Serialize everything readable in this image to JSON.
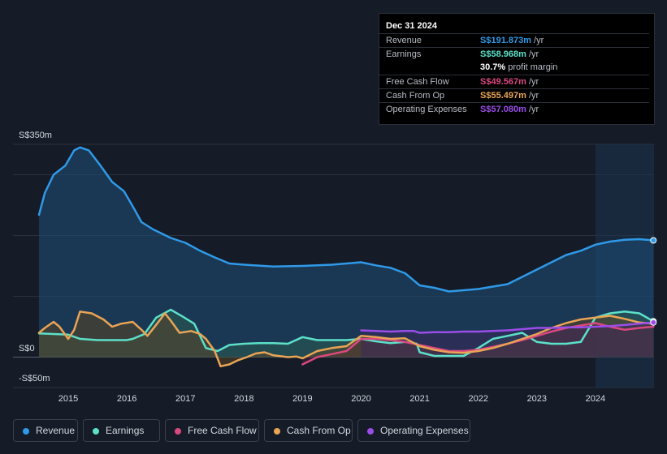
{
  "tooltip": {
    "date": "Dec 31 2024",
    "rows": [
      {
        "label": "Revenue",
        "value": "S$191.873m",
        "unit": " /yr",
        "color": "#2f9ae8"
      },
      {
        "label": "Earnings",
        "value": "S$58.968m",
        "unit": " /yr",
        "color": "#5ce0c8"
      },
      {
        "label": "",
        "value": "30.7%",
        "unit": " profit margin",
        "color": "#ffffff"
      },
      {
        "label": "Free Cash Flow",
        "value": "S$49.567m",
        "unit": " /yr",
        "color": "#d9487f"
      },
      {
        "label": "Cash From Op",
        "value": "S$55.497m",
        "unit": " /yr",
        "color": "#e9a455"
      },
      {
        "label": "Operating Expenses",
        "value": "S$57.080m",
        "unit": " /yr",
        "color": "#9b4de8"
      }
    ]
  },
  "legend": [
    {
      "label": "Revenue",
      "color": "#2f9ae8"
    },
    {
      "label": "Earnings",
      "color": "#5ce0c8"
    },
    {
      "label": "Free Cash Flow",
      "color": "#d9487f"
    },
    {
      "label": "Cash From Op",
      "color": "#e9a455"
    },
    {
      "label": "Operating Expenses",
      "color": "#9b4de8"
    }
  ],
  "chart_data": {
    "type": "area",
    "title": "",
    "xlabel": "",
    "ylabel": "",
    "ylim": [
      -50,
      350
    ],
    "xlim": [
      2014.5,
      2025.0
    ],
    "y_tick_labels": [
      {
        "value": 350,
        "label": "S$350m"
      },
      {
        "value": 0,
        "label": "S$0"
      },
      {
        "value": -50,
        "label": "-S$50m"
      }
    ],
    "x_tick_labels": [
      "2015",
      "2016",
      "2017",
      "2018",
      "2019",
      "2020",
      "2021",
      "2022",
      "2023",
      "2024"
    ],
    "x_ticks": [
      2015,
      2016,
      2017,
      2018,
      2019,
      2020,
      2021,
      2022,
      2023,
      2024
    ],
    "gridlines_at": [
      350,
      300,
      200,
      100,
      0,
      -50
    ],
    "forecast_shade_from": 2024.0,
    "series": [
      {
        "name": "Revenue",
        "color": "#2f9ae8",
        "fill": true,
        "fill_color": "#1f4f78",
        "end_marker": true,
        "x": [
          2014.5,
          2014.6,
          2014.75,
          2014.95,
          2015.1,
          2015.2,
          2015.35,
          2015.55,
          2015.75,
          2015.95,
          2016.1,
          2016.25,
          2016.45,
          2016.75,
          2017.0,
          2017.25,
          2017.5,
          2017.75,
          2018.0,
          2018.5,
          2019.0,
          2019.25,
          2019.5,
          2019.75,
          2020.0,
          2020.25,
          2020.5,
          2020.75,
          2021.0,
          2021.25,
          2021.5,
          2021.75,
          2022.0,
          2022.25,
          2022.5,
          2022.75,
          2023.0,
          2023.25,
          2023.5,
          2023.75,
          2024.0,
          2024.25,
          2024.5,
          2024.75,
          2024.99
        ],
        "values": [
          234,
          270,
          300,
          315,
          340,
          345,
          340,
          315,
          288,
          273,
          248,
          222,
          210,
          196,
          188,
          175,
          164,
          154,
          152,
          149,
          150,
          151,
          152,
          154,
          156,
          151,
          147,
          138,
          118,
          114,
          108,
          110,
          112,
          116,
          120,
          132,
          144,
          156,
          168,
          175,
          185,
          190,
          193,
          194,
          192
        ]
      },
      {
        "name": "Earnings",
        "color": "#5ce0c8",
        "fill": true,
        "fill_color": "#2a5c52",
        "end_marker": true,
        "x": [
          2014.5,
          2014.75,
          2015.0,
          2015.2,
          2015.5,
          2015.75,
          2016.0,
          2016.1,
          2016.3,
          2016.5,
          2016.75,
          2016.95,
          2017.15,
          2017.35,
          2017.55,
          2017.75,
          2018.0,
          2018.25,
          2018.5,
          2018.75,
          2019.0,
          2019.25,
          2019.5,
          2019.75,
          2020.0,
          2020.25,
          2020.5,
          2020.75,
          2020.95,
          2021.0,
          2021.25,
          2021.5,
          2021.75,
          2022.0,
          2022.25,
          2022.5,
          2022.75,
          2023.0,
          2023.25,
          2023.5,
          2023.75,
          2024.0,
          2024.25,
          2024.5,
          2024.75,
          2024.99
        ],
        "values": [
          39,
          38,
          37,
          30,
          28,
          28,
          28,
          30,
          38,
          65,
          78,
          67,
          55,
          15,
          10,
          20,
          22,
          23,
          23,
          22,
          33,
          28,
          28,
          28,
          30,
          26,
          23,
          25,
          22,
          8,
          2,
          2,
          2,
          15,
          30,
          35,
          40,
          25,
          22,
          22,
          25,
          65,
          72,
          75,
          72,
          59
        ]
      },
      {
        "name": "Free Cash Flow",
        "color": "#d9487f",
        "fill": true,
        "fill_color": "#4a2038",
        "x": [
          2019.0,
          2019.25,
          2019.5,
          2019.75,
          2020.0,
          2020.25,
          2020.5,
          2020.75,
          2021.0,
          2021.25,
          2021.5,
          2021.75,
          2022.0,
          2022.25,
          2022.5,
          2022.75,
          2023.0,
          2023.25,
          2023.5,
          2023.75,
          2024.0,
          2024.25,
          2024.5,
          2024.75,
          2024.99
        ],
        "values": [
          -12,
          0,
          5,
          10,
          30,
          30,
          28,
          25,
          20,
          15,
          10,
          10,
          12,
          17,
          22,
          28,
          35,
          42,
          48,
          52,
          56,
          50,
          45,
          48,
          50
        ]
      },
      {
        "name": "Cash From Op",
        "color": "#e9a455",
        "fill": true,
        "fill_color": "#5a4526",
        "x": [
          2014.5,
          2014.6,
          2014.75,
          2014.85,
          2015.0,
          2015.1,
          2015.2,
          2015.4,
          2015.6,
          2015.75,
          2015.9,
          2016.1,
          2016.25,
          2016.35,
          2016.5,
          2016.65,
          2016.75,
          2016.9,
          2017.1,
          2017.25,
          2017.35,
          2017.5,
          2017.6,
          2017.75,
          2017.9,
          2018.05,
          2018.2,
          2018.35,
          2018.5,
          2018.75,
          2018.9,
          2019.0,
          2019.25,
          2019.5,
          2019.75,
          2020.0,
          2020.25,
          2020.5,
          2020.75,
          2021.0,
          2021.25,
          2021.5,
          2021.75,
          2022.0,
          2022.25,
          2022.5,
          2022.75,
          2023.0,
          2023.25,
          2023.5,
          2023.75,
          2024.0,
          2024.25,
          2024.5,
          2024.75,
          2024.99
        ],
        "values": [
          40,
          48,
          58,
          50,
          30,
          45,
          75,
          72,
          62,
          50,
          55,
          58,
          45,
          35,
          53,
          72,
          60,
          40,
          43,
          38,
          30,
          10,
          -15,
          -12,
          -5,
          0,
          6,
          8,
          3,
          0,
          1,
          -2,
          10,
          15,
          18,
          35,
          33,
          30,
          31,
          18,
          12,
          8,
          7,
          10,
          15,
          22,
          30,
          38,
          48,
          56,
          62,
          65,
          68,
          63,
          57,
          55
        ]
      },
      {
        "name": "Operating Expenses",
        "color": "#9b4de8",
        "fill": true,
        "fill_color": "#3a2a5c",
        "end_marker": true,
        "x": [
          2020.0,
          2020.25,
          2020.5,
          2020.75,
          2020.9,
          2021.0,
          2021.25,
          2021.5,
          2021.75,
          2022.0,
          2022.25,
          2022.5,
          2022.75,
          2023.0,
          2023.25,
          2023.5,
          2023.75,
          2024.0,
          2024.25,
          2024.5,
          2024.75,
          2024.99
        ],
        "values": [
          44,
          43,
          42,
          43,
          43,
          40,
          41,
          41,
          42,
          42,
          43,
          44,
          46,
          48,
          48,
          49,
          49,
          50,
          51,
          53,
          55,
          57
        ]
      }
    ]
  }
}
